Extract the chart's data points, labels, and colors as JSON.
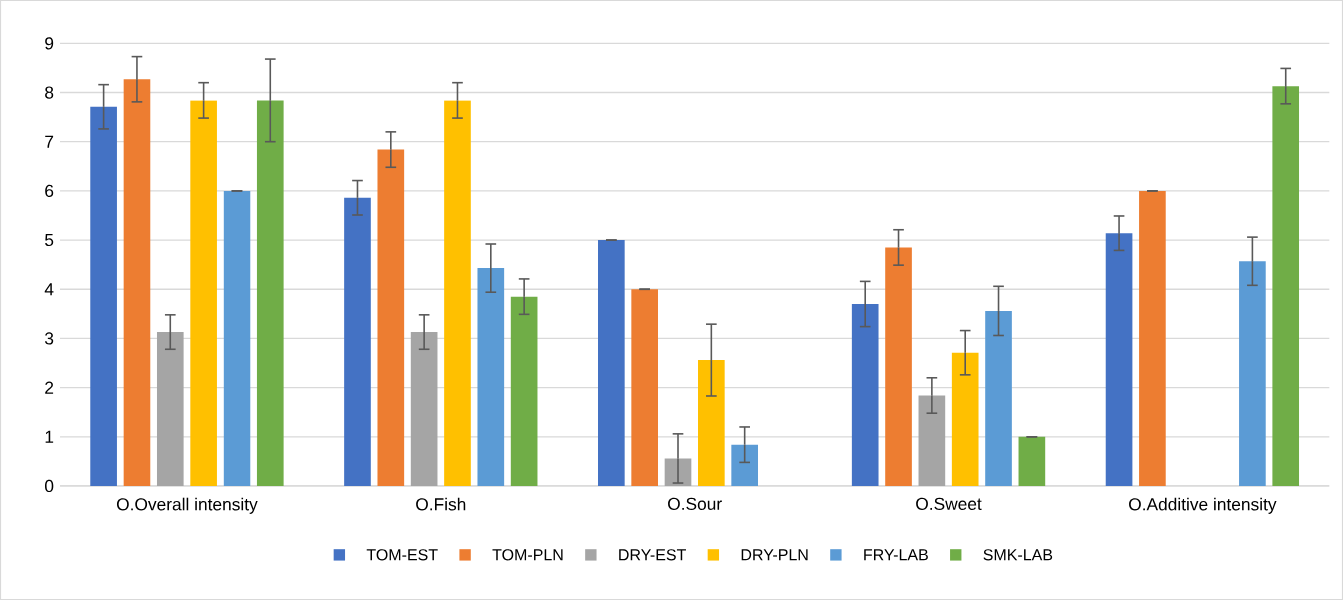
{
  "chart_data": {
    "type": "bar",
    "categories": [
      "O.Overall intensity",
      "O.Fish",
      "O.Sour",
      "O.Sweet",
      "O.Additive intensity"
    ],
    "ylim": [
      0,
      9
    ],
    "yticks": [
      0,
      1,
      2,
      3,
      4,
      5,
      6,
      7,
      8,
      9
    ],
    "grid": "y",
    "legend": "bottom",
    "series": [
      {
        "name": "TOM-EST",
        "color": "#4472c4",
        "values": [
          7.71,
          5.86,
          5.0,
          3.7,
          5.14
        ],
        "errors": [
          0.45,
          0.35,
          0,
          0.46,
          0.35
        ]
      },
      {
        "name": "TOM-PLN",
        "color": "#ed7d31",
        "values": [
          8.27,
          6.84,
          4.0,
          4.85,
          6.0
        ],
        "errors": [
          0.46,
          0.36,
          0,
          0.36,
          0
        ]
      },
      {
        "name": "DRY-EST",
        "color": "#a5a5a5",
        "values": [
          3.13,
          3.13,
          0.56,
          1.84,
          0
        ],
        "errors": [
          0.35,
          0.35,
          0.5,
          0.36,
          null
        ]
      },
      {
        "name": "DRY-PLN",
        "color": "#ffc000",
        "values": [
          7.84,
          7.84,
          2.56,
          2.71,
          0
        ],
        "errors": [
          0.36,
          0.36,
          0.73,
          0.45,
          null
        ]
      },
      {
        "name": "FRY-LAB",
        "color": "#5b9bd5",
        "values": [
          6.0,
          4.43,
          0.84,
          3.56,
          4.57
        ],
        "errors": [
          0,
          0.49,
          0.36,
          0.5,
          0.49
        ]
      },
      {
        "name": "SMK-LAB",
        "color": "#70ad47",
        "values": [
          7.84,
          3.85,
          0,
          1.0,
          8.13
        ],
        "errors": [
          0.84,
          0.36,
          null,
          0,
          0.36
        ]
      }
    ]
  }
}
